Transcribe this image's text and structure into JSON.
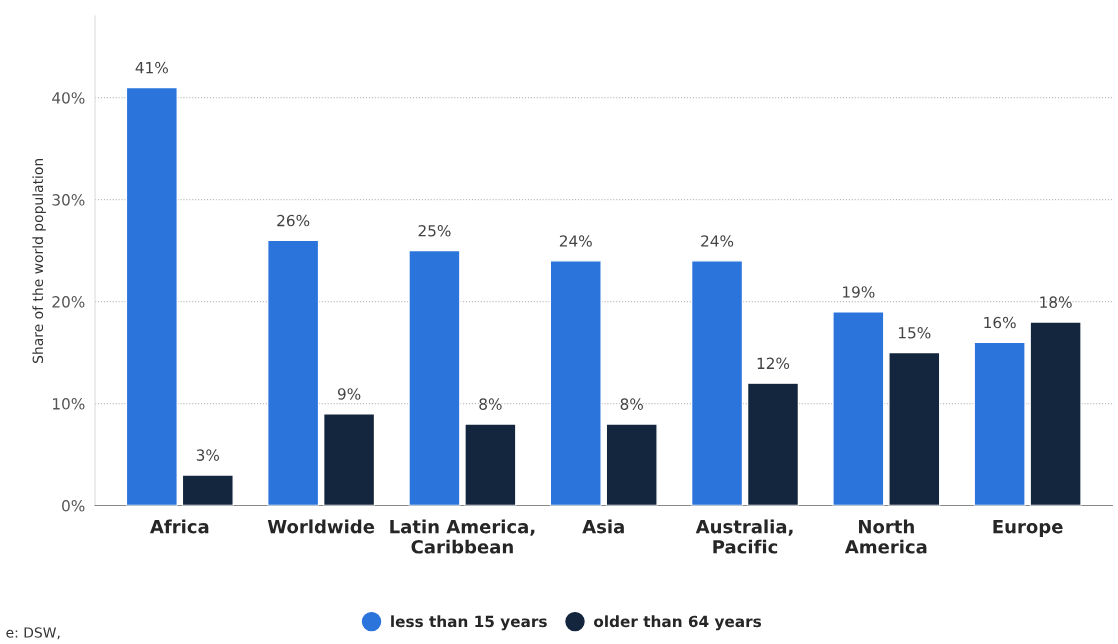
{
  "chart_data": {
    "type": "bar",
    "ylabel": "Share of the world population",
    "categories": [
      "Africa",
      "Worldwide",
      "Latin America,\nCaribbean",
      "Asia",
      "Australia,\nPacific",
      "North\nAmerica",
      "Europe"
    ],
    "series": [
      {
        "name": "less than 15 years",
        "color": "#2a74dc",
        "values": [
          41,
          26,
          25,
          24,
          24,
          19,
          16
        ]
      },
      {
        "name": "older than 64 years",
        "color": "#13263d",
        "values": [
          3,
          9,
          8,
          8,
          12,
          15,
          18
        ]
      }
    ],
    "ylim": [
      0,
      48
    ],
    "yticks": [
      {
        "value": 0,
        "label": "0%"
      },
      {
        "value": 10,
        "label": "10%"
      },
      {
        "value": 20,
        "label": "20%"
      },
      {
        "value": 30,
        "label": "30%"
      },
      {
        "value": 40,
        "label": "40%"
      }
    ],
    "grid": "y",
    "legend": "bottom",
    "marker": "circle",
    "value_labels": [
      [
        "41%",
        "26%",
        "25%",
        "24%",
        "24%",
        "19%",
        "16%"
      ],
      [
        "3%",
        "9%",
        "8%",
        "8%",
        "12%",
        "15%",
        "18%"
      ]
    ],
    "annotations": [
      "e: DSW,"
    ]
  }
}
